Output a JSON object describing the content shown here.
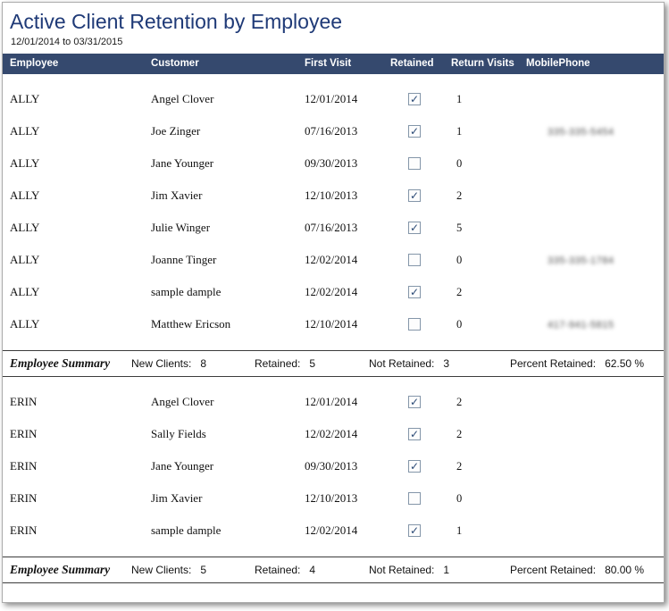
{
  "colors": {
    "header_bg": "#35496E",
    "title_color": "#1F3A77"
  },
  "title": "Active Client Retention by Employee",
  "subtitle": "12/01/2014 to 03/31/2015",
  "table": {
    "columns": [
      "Employee",
      "Customer",
      "First Visit",
      "Retained",
      "Return Visits",
      "MobilePhone"
    ],
    "groups": [
      {
        "rows": [
          {
            "employee": "ALLY",
            "customer": "Angel Clover",
            "first_visit": "12/01/2014",
            "retained": true,
            "return_visits": "1",
            "mobile_phone": ""
          },
          {
            "employee": "ALLY",
            "customer": "Joe Zinger",
            "first_visit": "07/16/2013",
            "retained": true,
            "return_visits": "1",
            "mobile_phone": "335-335-5454"
          },
          {
            "employee": "ALLY",
            "customer": "Jane Younger",
            "first_visit": "09/30/2013",
            "retained": false,
            "return_visits": "0",
            "mobile_phone": ""
          },
          {
            "employee": "ALLY",
            "customer": "Jim Xavier",
            "first_visit": "12/10/2013",
            "retained": true,
            "return_visits": "2",
            "mobile_phone": ""
          },
          {
            "employee": "ALLY",
            "customer": "Julie Winger",
            "first_visit": "07/16/2013",
            "retained": true,
            "return_visits": "5",
            "mobile_phone": ""
          },
          {
            "employee": "ALLY",
            "customer": "Joanne Tinger",
            "first_visit": "12/02/2014",
            "retained": false,
            "return_visits": "0",
            "mobile_phone": "335-335-1784"
          },
          {
            "employee": "ALLY",
            "customer": "sample dample",
            "first_visit": "12/02/2014",
            "retained": true,
            "return_visits": "2",
            "mobile_phone": ""
          },
          {
            "employee": "ALLY",
            "customer": "Matthew Ericson",
            "first_visit": "12/10/2014",
            "retained": false,
            "return_visits": "0",
            "mobile_phone": "417-941-5815"
          }
        ],
        "summary": {
          "label": "Employee Summary",
          "items": [
            {
              "label": "New Clients:",
              "value": "8"
            },
            {
              "label": "Retained:",
              "value": "5"
            },
            {
              "label": "Not Retained:",
              "value": "3"
            },
            {
              "label": "Percent Retained:",
              "value": "62.50 %"
            }
          ]
        }
      },
      {
        "rows": [
          {
            "employee": "ERIN",
            "customer": "Angel Clover",
            "first_visit": "12/01/2014",
            "retained": true,
            "return_visits": "2",
            "mobile_phone": ""
          },
          {
            "employee": "ERIN",
            "customer": "Sally Fields",
            "first_visit": "12/02/2014",
            "retained": true,
            "return_visits": "2",
            "mobile_phone": ""
          },
          {
            "employee": "ERIN",
            "customer": "Jane Younger",
            "first_visit": "09/30/2013",
            "retained": true,
            "return_visits": "2",
            "mobile_phone": ""
          },
          {
            "employee": "ERIN",
            "customer": "Jim Xavier",
            "first_visit": "12/10/2013",
            "retained": false,
            "return_visits": "0",
            "mobile_phone": ""
          },
          {
            "employee": "ERIN",
            "customer": "sample dample",
            "first_visit": "12/02/2014",
            "retained": true,
            "return_visits": "1",
            "mobile_phone": ""
          }
        ],
        "summary": {
          "label": "Employee Summary",
          "items": [
            {
              "label": "New Clients:",
              "value": "5"
            },
            {
              "label": "Retained:",
              "value": "4"
            },
            {
              "label": "Not Retained:",
              "value": "1"
            },
            {
              "label": "Percent Retained:",
              "value": "80.00 %"
            }
          ]
        }
      }
    ]
  },
  "checkmark_glyph": "✓"
}
